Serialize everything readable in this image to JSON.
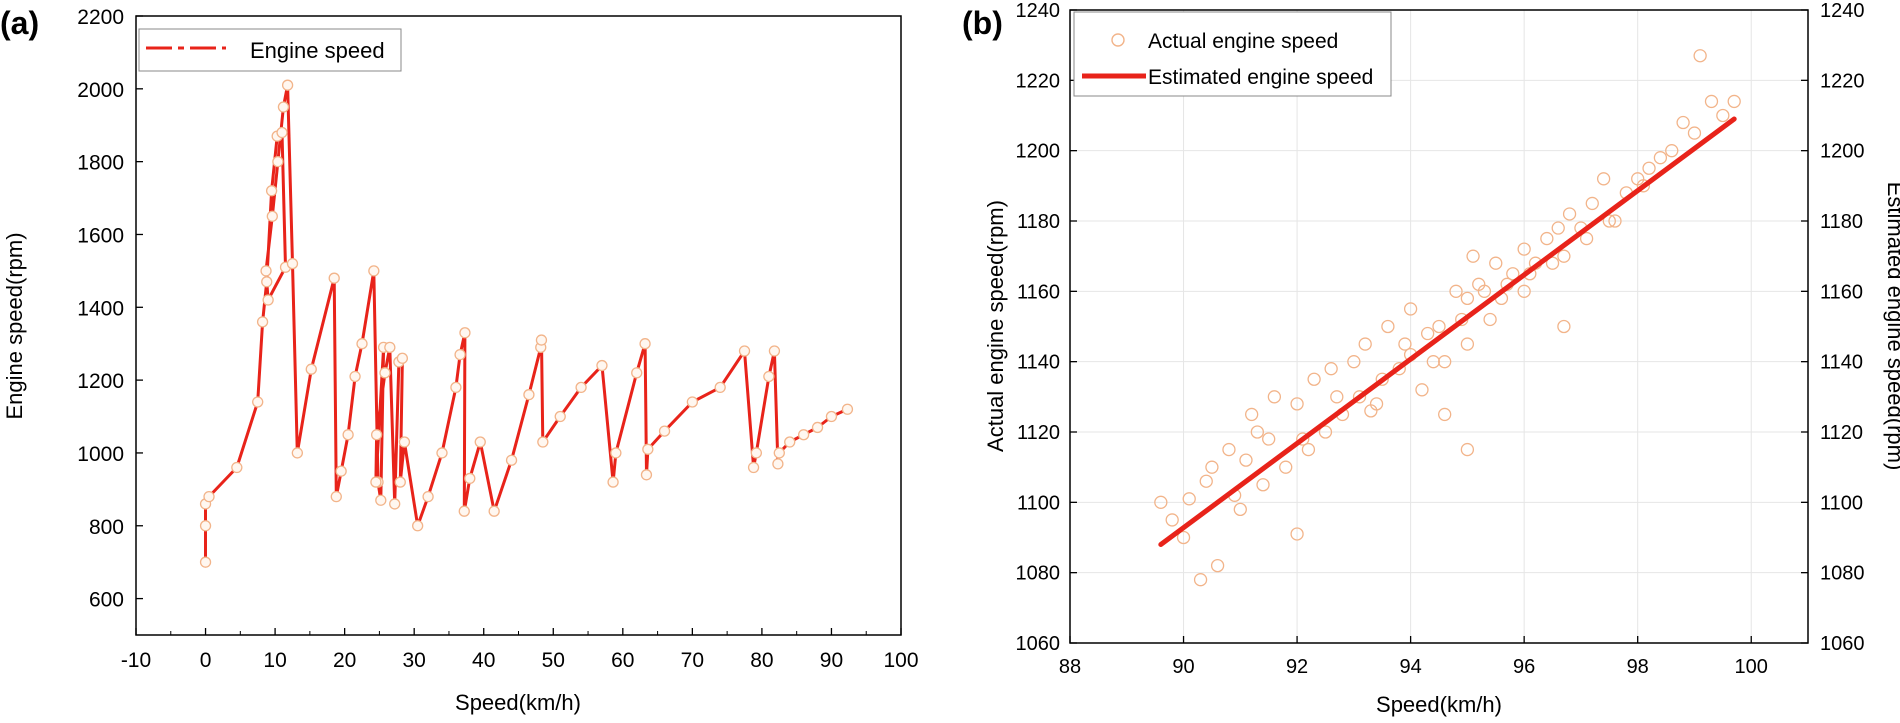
{
  "colors": {
    "line": "#e8231a",
    "marker": "#f2b48a",
    "axis": "#000000",
    "grid": "#e6e6e6"
  },
  "chart_data": [
    {
      "panel_label": "(a)",
      "type": "line",
      "title": "",
      "xlabel": "Speed(km/h)",
      "ylabel": "Engine speed(rpm)",
      "xlim": [
        -10,
        100
      ],
      "ylim": [
        500,
        2200
      ],
      "xticks": [
        -10,
        0,
        10,
        20,
        30,
        40,
        50,
        60,
        70,
        80,
        90,
        100
      ],
      "yticks": [
        600,
        800,
        1000,
        1200,
        1400,
        1600,
        1800,
        2000,
        2200
      ],
      "grid": false,
      "legend": {
        "position": "top-left",
        "entries": [
          "Engine speed"
        ]
      },
      "series": [
        {
          "name": "Engine speed",
          "x": [
            0,
            0,
            0,
            0.5,
            4.5,
            7.5,
            8.2,
            8.8,
            9.5,
            10.3,
            11.0,
            11.5,
            9.0,
            8.7,
            9.6,
            10.4,
            11.2,
            11.8,
            12.5,
            13.2,
            15.2,
            18.5,
            18.8,
            19.5,
            20.5,
            21.5,
            22.5,
            24.2,
            24.8,
            25.2,
            25.6,
            24.5,
            24.6,
            25.8,
            26.5,
            27.2,
            27.8,
            28.3,
            28.0,
            28.6,
            30.5,
            32.0,
            34.0,
            36.0,
            36.6,
            37.3,
            37.2,
            38.0,
            39.5,
            41.5,
            44.0,
            46.5,
            48.2,
            48.3,
            48.5,
            51.0,
            54.0,
            57.0,
            58.6,
            59.0,
            62.0,
            63.2,
            63.4,
            63.6,
            66.0,
            70.0,
            74.0,
            77.5,
            78.8,
            79.2,
            81.0,
            81.8,
            82.3,
            82.5,
            84.0,
            86.0,
            88.0,
            90.0,
            92.3
          ],
          "y": [
            700,
            800,
            860,
            880,
            960,
            1140,
            1360,
            1470,
            1720,
            1870,
            1880,
            1510,
            1420,
            1500,
            1650,
            1800,
            1950,
            2010,
            1520,
            1000,
            1230,
            1480,
            880,
            950,
            1050,
            1210,
            1300,
            1500,
            920,
            870,
            1290,
            920,
            1050,
            1220,
            1290,
            860,
            1250,
            1260,
            920,
            1030,
            800,
            880,
            1000,
            1180,
            1270,
            1330,
            840,
            930,
            1030,
            840,
            980,
            1160,
            1290,
            1310,
            1030,
            1100,
            1180,
            1240,
            920,
            1000,
            1220,
            1300,
            940,
            1010,
            1060,
            1140,
            1180,
            1280,
            960,
            1000,
            1210,
            1280,
            970,
            1000,
            1030,
            1050,
            1070,
            1100,
            1120
          ]
        }
      ]
    },
    {
      "panel_label": "(b)",
      "type": "scatter",
      "title": "",
      "xlabel": "Speed(km/h)",
      "ylabel": "Actual engine speed(rpm)",
      "y2label": "Estimated engine speed(rpm)",
      "xlim": [
        88,
        101
      ],
      "ylim": [
        1060,
        1240
      ],
      "xticks": [
        88,
        90,
        92,
        94,
        96,
        98,
        100
      ],
      "yticks": [
        1060,
        1080,
        1100,
        1120,
        1140,
        1160,
        1180,
        1200,
        1220,
        1240
      ],
      "grid": true,
      "legend": {
        "position": "top-left",
        "entries": [
          "Actual engine speed",
          "Estimated engine speed"
        ]
      },
      "series": [
        {
          "name": "Actual engine speed",
          "mode": "markers",
          "x": [
            89.6,
            89.8,
            90.0,
            90.1,
            90.3,
            90.5,
            90.6,
            90.8,
            91.0,
            91.1,
            91.2,
            91.4,
            91.5,
            91.6,
            91.8,
            92.0,
            92.0,
            92.2,
            92.3,
            92.5,
            92.6,
            92.8,
            93.0,
            93.1,
            93.2,
            93.4,
            93.5,
            93.6,
            93.8,
            94.0,
            94.0,
            94.2,
            94.3,
            94.5,
            94.6,
            94.8,
            95.0,
            95.0,
            95.1,
            95.2,
            95.4,
            95.5,
            95.6,
            95.8,
            96.0,
            96.0,
            96.2,
            96.4,
            96.6,
            96.7,
            96.8,
            97.0,
            97.2,
            97.4,
            97.6,
            97.8,
            98.0,
            98.2,
            98.4,
            98.6,
            98.8,
            99.0,
            99.1,
            99.3,
            99.5,
            99.7,
            90.4,
            90.9,
            91.3,
            92.1,
            92.7,
            93.3,
            93.9,
            94.4,
            94.9,
            95.3,
            95.7,
            96.1,
            96.5,
            97.1,
            97.5,
            98.1,
            94.6,
            95.0,
            96.7
          ],
          "y": [
            1100,
            1095,
            1090,
            1101,
            1078,
            1110,
            1082,
            1115,
            1098,
            1112,
            1125,
            1105,
            1118,
            1130,
            1110,
            1091,
            1128,
            1115,
            1135,
            1120,
            1138,
            1125,
            1140,
            1130,
            1145,
            1128,
            1135,
            1150,
            1138,
            1142,
            1155,
            1132,
            1148,
            1150,
            1140,
            1160,
            1158,
            1145,
            1170,
            1162,
            1152,
            1168,
            1158,
            1165,
            1172,
            1160,
            1168,
            1175,
            1178,
            1170,
            1182,
            1178,
            1185,
            1192,
            1180,
            1188,
            1192,
            1195,
            1198,
            1200,
            1208,
            1205,
            1227,
            1214,
            1210,
            1214,
            1106,
            1102,
            1120,
            1118,
            1130,
            1126,
            1145,
            1140,
            1152,
            1160,
            1162,
            1165,
            1168,
            1175,
            1180,
            1190,
            1125,
            1115,
            1150
          ]
        },
        {
          "name": "Estimated engine speed",
          "mode": "line",
          "x": [
            89.6,
            99.7
          ],
          "y": [
            1088,
            1209
          ]
        }
      ]
    }
  ]
}
